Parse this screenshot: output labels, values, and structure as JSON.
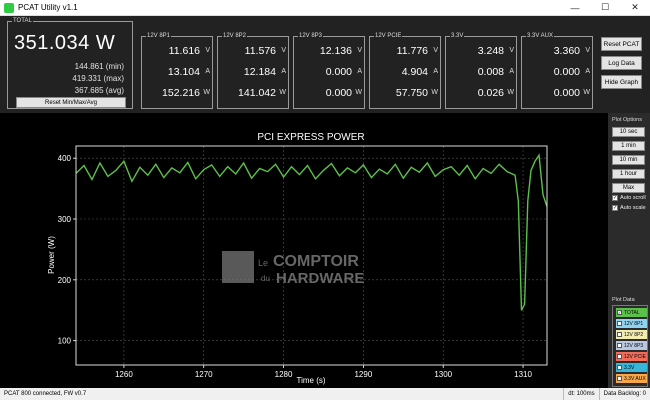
{
  "window": {
    "title": "PCAT Utility v1.1",
    "minimize": "—",
    "maximize": "☐",
    "close": "✕"
  },
  "total": {
    "label": "TOTAL",
    "value": "351.034 W",
    "min": "144.861  (min)",
    "max": "419.331  (max)",
    "avg": "367.685  (avg)",
    "reset_label": "Reset Min/Max/Avg"
  },
  "rails": [
    {
      "name": "12V 8P1",
      "volts": "11.616",
      "amps": "13.104",
      "watts": "152.216"
    },
    {
      "name": "12V 8P2",
      "volts": "11.576",
      "amps": "12.184",
      "watts": "141.042"
    },
    {
      "name": "12V 8P3",
      "volts": "12.136",
      "amps": "0.000",
      "watts": "0.000"
    },
    {
      "name": "12V PCIE",
      "volts": "11.776",
      "amps": "4.904",
      "watts": "57.750"
    },
    {
      "name": "3.3V",
      "volts": "3.248",
      "amps": "0.008",
      "watts": "0.026"
    },
    {
      "name": "3.3V AUX",
      "volts": "3.360",
      "amps": "0.000",
      "watts": "0.000"
    }
  ],
  "units": {
    "v": "V",
    "a": "A",
    "w": "W"
  },
  "side_buttons": {
    "reset_pcat": "Reset PCAT",
    "log_data": "Log Data",
    "hide_graph": "Hide Graph"
  },
  "plot_options": {
    "label": "Plot Options",
    "buttons": [
      "10 sec",
      "1 min",
      "10 min",
      "1 hour",
      "Max"
    ],
    "auto_scroll": "Auto scroll",
    "auto_scale": "Auto scale",
    "check_mark": "✓"
  },
  "plot_data": {
    "label": "Plot Data",
    "items": [
      {
        "label": "TOTAL",
        "color": "#5cc14a",
        "checked": true
      },
      {
        "label": "12V 8P1",
        "color": "#8fd3f0",
        "checked": false
      },
      {
        "label": "12V 8P2",
        "color": "#f3ecb0",
        "checked": false
      },
      {
        "label": "12V 8P3",
        "color": "#b9c7e0",
        "checked": false
      },
      {
        "label": "12V PCIE",
        "color": "#f26c5a",
        "checked": false
      },
      {
        "label": "3.3V",
        "color": "#38b6d9",
        "checked": false
      },
      {
        "label": "3.3V AUX",
        "color": "#f7a64a",
        "checked": false
      }
    ]
  },
  "watermark": {
    "le": "Le",
    "du": "du",
    "comptoir": "COMPTOIR",
    "hardware": "HARDWARE"
  },
  "status": {
    "left": "PCAT 800 connected, FW v0.7",
    "dt": "dt: 100ms",
    "backlog": "Data Backlog: 0"
  },
  "chart_data": {
    "type": "line",
    "title": "PCI EXPRESS POWER",
    "xlabel": "Time (s)",
    "ylabel": "Power (W)",
    "xlim": [
      1254,
      1313
    ],
    "ylim": [
      60,
      420
    ],
    "xticks": [
      1260,
      1270,
      1280,
      1290,
      1300,
      1310
    ],
    "yticks": [
      100,
      200,
      300,
      400
    ],
    "grid": true,
    "series": [
      {
        "name": "TOTAL",
        "color": "#5cc14a",
        "x": [
          1254,
          1255,
          1256,
          1257,
          1258,
          1259,
          1260,
          1261,
          1262,
          1263,
          1264,
          1265,
          1266,
          1267,
          1268,
          1269,
          1270,
          1271,
          1272,
          1273,
          1274,
          1275,
          1276,
          1277,
          1278,
          1279,
          1280,
          1281,
          1282,
          1283,
          1284,
          1285,
          1286,
          1287,
          1288,
          1289,
          1290,
          1291,
          1292,
          1293,
          1294,
          1295,
          1296,
          1297,
          1298,
          1299,
          1300,
          1301,
          1302,
          1303,
          1304,
          1305,
          1306,
          1307,
          1308,
          1309,
          1309.4,
          1309.8,
          1310.2,
          1310.6,
          1311,
          1311.5,
          1312,
          1312.5,
          1313
        ],
        "y": [
          375,
          388,
          365,
          392,
          370,
          380,
          395,
          362,
          385,
          372,
          390,
          368,
          384,
          376,
          393,
          366,
          381,
          389,
          370,
          386,
          374,
          392,
          367,
          383,
          378,
          390,
          369,
          386,
          373,
          388,
          366,
          380,
          391,
          371,
          384,
          376,
          389,
          368,
          382,
          374,
          390,
          367,
          385,
          377,
          392,
          370,
          381,
          386,
          372,
          388,
          366,
          383,
          375,
          390,
          378,
          372,
          330,
          150,
          160,
          330,
          380,
          395,
          405,
          340,
          320
        ]
      }
    ]
  }
}
